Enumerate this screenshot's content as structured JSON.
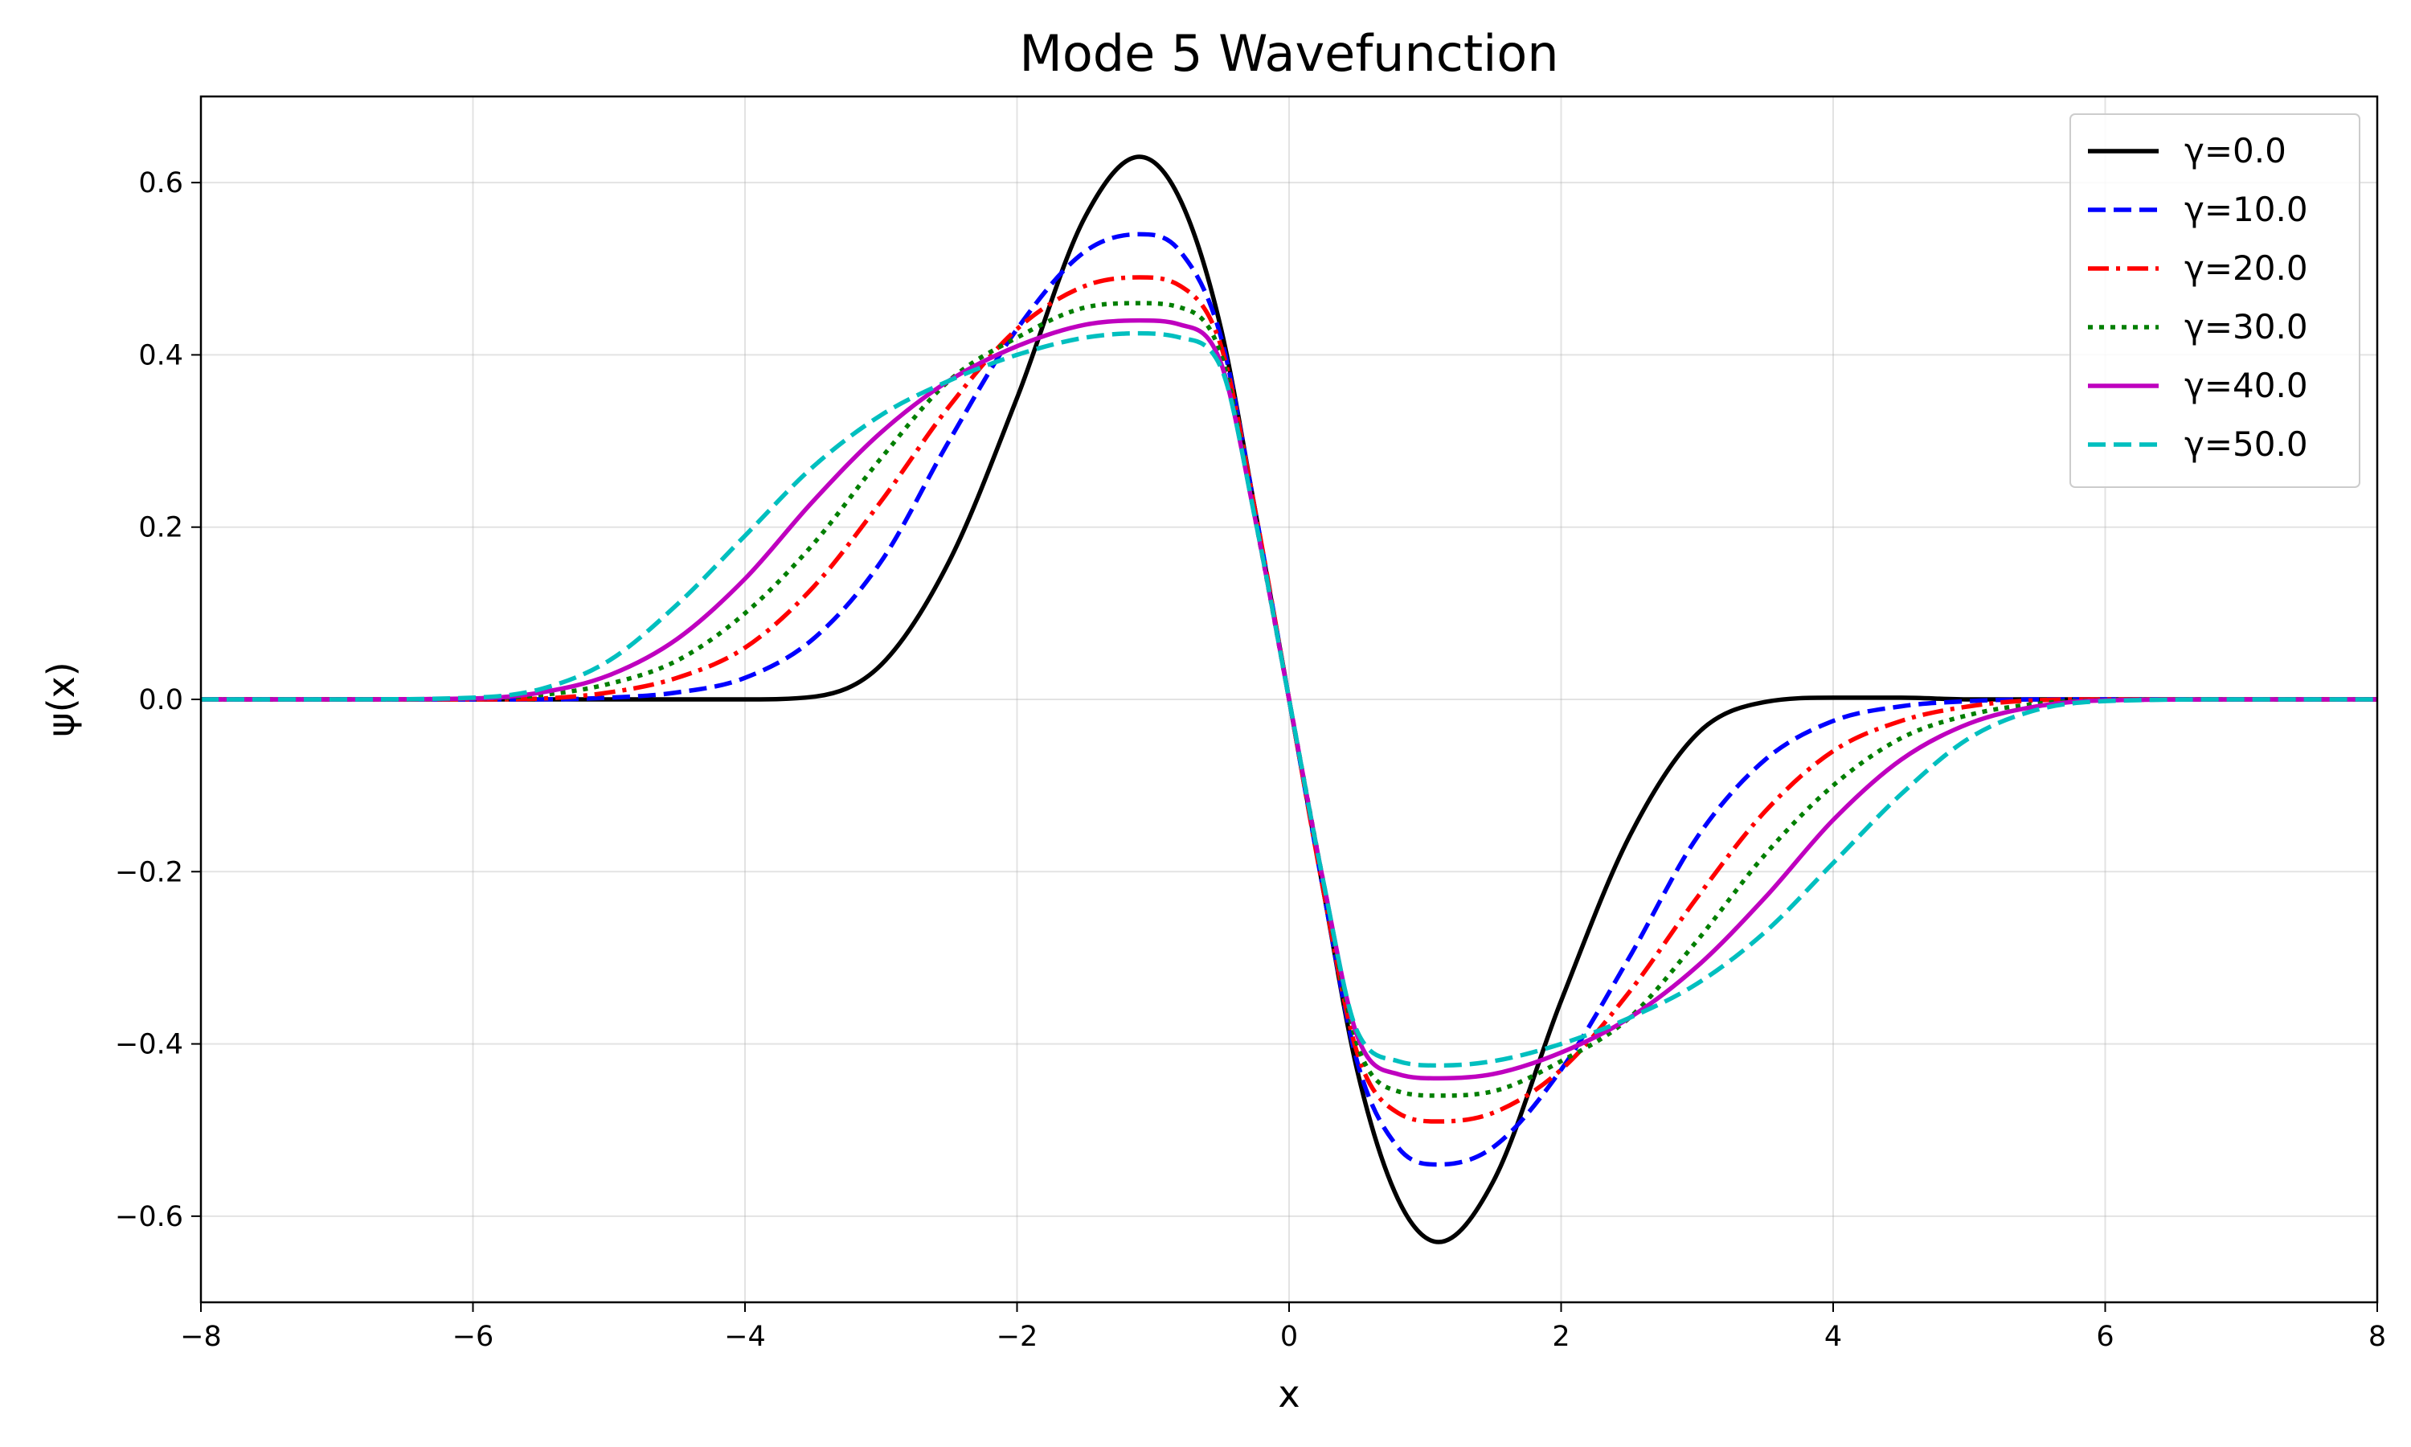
{
  "chart_data": {
    "type": "line",
    "title": "Mode 5 Wavefunction",
    "xlabel": "x",
    "ylabel": "ψ(x)",
    "xlim": [
      -8,
      8
    ],
    "ylim": [
      -0.7,
      0.7
    ],
    "xticks": [
      -8,
      -6,
      -4,
      -2,
      0,
      2,
      4,
      6,
      8
    ],
    "xtick_labels": [
      "−8",
      "−6",
      "−4",
      "−2",
      "0",
      "2",
      "4",
      "6",
      "8"
    ],
    "yticks": [
      -0.6,
      -0.4,
      -0.2,
      0.0,
      0.2,
      0.4,
      0.6
    ],
    "ytick_labels": [
      "−0.6",
      "−0.4",
      "−0.2",
      "0.0",
      "0.2",
      "0.4",
      "0.6"
    ],
    "grid": true,
    "legend_position": "top-right",
    "x": [
      -8.0,
      -7.0,
      -6.0,
      -5.5,
      -5.0,
      -4.5,
      -4.0,
      -3.5,
      -3.0,
      -2.5,
      -2.0,
      -1.5,
      -1.1,
      -0.8,
      -0.5,
      -0.25,
      0.0,
      0.25,
      0.5,
      0.8,
      1.1,
      1.5,
      2.0,
      2.5,
      3.0,
      3.5,
      4.0,
      4.5,
      5.0,
      5.5,
      6.0,
      7.0,
      8.0
    ],
    "series": [
      {
        "name": "γ=0.0",
        "color": "#000000",
        "dash": "solid",
        "values": [
          0.0,
          0.0,
          0.0,
          0.0,
          0.0,
          0.0,
          0.0,
          0.003,
          0.04,
          0.16,
          0.35,
          0.56,
          0.63,
          0.58,
          0.43,
          0.22,
          0.0,
          -0.22,
          -0.43,
          -0.58,
          -0.63,
          -0.56,
          -0.35,
          -0.16,
          -0.04,
          -0.003,
          0.002,
          0.002,
          0.0,
          0.0,
          0.0,
          0.0,
          0.0
        ]
      },
      {
        "name": "γ=10.0",
        "color": "#0000ff",
        "dash": "dashed",
        "values": [
          0.0,
          0.0,
          0.0,
          0.0,
          0.002,
          0.008,
          0.025,
          0.07,
          0.16,
          0.3,
          0.43,
          0.52,
          0.54,
          0.52,
          0.42,
          0.22,
          0.0,
          -0.22,
          -0.42,
          -0.52,
          -0.54,
          -0.52,
          -0.43,
          -0.3,
          -0.16,
          -0.07,
          -0.025,
          -0.008,
          -0.002,
          0.0,
          0.0,
          0.0,
          0.0
        ]
      },
      {
        "name": "γ=20.0",
        "color": "#ff0000",
        "dash": "dashdot",
        "values": [
          0.0,
          0.0,
          0.0,
          0.001,
          0.008,
          0.025,
          0.06,
          0.13,
          0.23,
          0.34,
          0.43,
          0.48,
          0.49,
          0.48,
          0.41,
          0.22,
          0.0,
          -0.22,
          -0.41,
          -0.48,
          -0.49,
          -0.48,
          -0.43,
          -0.34,
          -0.23,
          -0.13,
          -0.06,
          -0.025,
          -0.008,
          -0.001,
          0.0,
          0.0,
          0.0
        ]
      },
      {
        "name": "γ=30.0",
        "color": "#007f00",
        "dash": "dotted",
        "values": [
          0.0,
          0.0,
          0.001,
          0.005,
          0.018,
          0.045,
          0.1,
          0.18,
          0.28,
          0.37,
          0.42,
          0.455,
          0.46,
          0.455,
          0.4,
          0.21,
          0.0,
          -0.21,
          -0.4,
          -0.455,
          -0.46,
          -0.455,
          -0.42,
          -0.37,
          -0.28,
          -0.18,
          -0.1,
          -0.045,
          -0.018,
          -0.005,
          -0.001,
          0.0,
          0.0
        ]
      },
      {
        "name": "γ=40.0",
        "color": "#bf00bf",
        "dash": "solid",
        "values": [
          0.0,
          0.0,
          0.001,
          0.008,
          0.028,
          0.07,
          0.14,
          0.23,
          0.31,
          0.37,
          0.41,
          0.435,
          0.44,
          0.435,
          0.39,
          0.21,
          0.0,
          -0.21,
          -0.39,
          -0.435,
          -0.44,
          -0.435,
          -0.41,
          -0.37,
          -0.31,
          -0.23,
          -0.14,
          -0.07,
          -0.028,
          -0.008,
          -0.001,
          0.0,
          0.0
        ]
      },
      {
        "name": "γ=50.0",
        "color": "#00bfbf",
        "dash": "dashed",
        "values": [
          0.0,
          0.0,
          0.002,
          0.012,
          0.045,
          0.11,
          0.19,
          0.27,
          0.33,
          0.37,
          0.4,
          0.42,
          0.425,
          0.42,
          0.385,
          0.21,
          0.0,
          -0.21,
          -0.385,
          -0.42,
          -0.425,
          -0.42,
          -0.4,
          -0.37,
          -0.33,
          -0.27,
          -0.19,
          -0.11,
          -0.045,
          -0.012,
          -0.002,
          0.0,
          0.0
        ]
      }
    ]
  }
}
